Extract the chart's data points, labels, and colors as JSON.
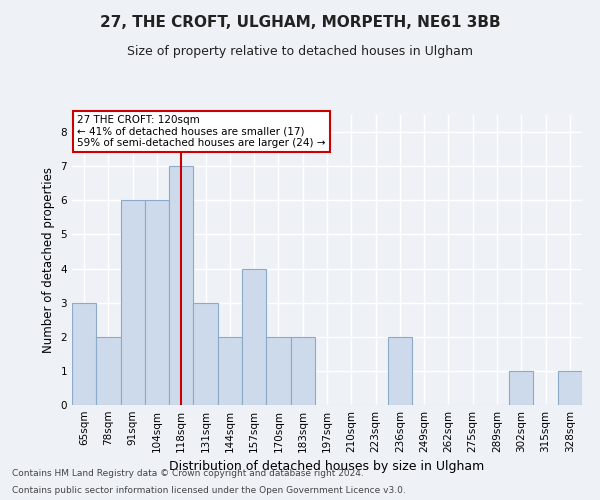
{
  "title1": "27, THE CROFT, ULGHAM, MORPETH, NE61 3BB",
  "title2": "Size of property relative to detached houses in Ulgham",
  "xlabel": "Distribution of detached houses by size in Ulgham",
  "ylabel": "Number of detached properties",
  "categories": [
    "65sqm",
    "78sqm",
    "91sqm",
    "104sqm",
    "118sqm",
    "131sqm",
    "144sqm",
    "157sqm",
    "170sqm",
    "183sqm",
    "197sqm",
    "210sqm",
    "223sqm",
    "236sqm",
    "249sqm",
    "262sqm",
    "275sqm",
    "289sqm",
    "302sqm",
    "315sqm",
    "328sqm"
  ],
  "values": [
    3,
    2,
    6,
    6,
    7,
    3,
    2,
    4,
    2,
    2,
    0,
    0,
    0,
    2,
    0,
    0,
    0,
    0,
    1,
    0,
    1
  ],
  "bar_color": "#cddaeb",
  "bar_edge_color": "#8aaac8",
  "highlight_index": 4,
  "highlight_line_color": "#cc0000",
  "annotation_text": "27 THE CROFT: 120sqm\n← 41% of detached houses are smaller (17)\n59% of semi-detached houses are larger (24) →",
  "annotation_box_color": "#ffffff",
  "annotation_box_edge": "#cc0000",
  "ylim": [
    0,
    8.5
  ],
  "yticks": [
    0,
    1,
    2,
    3,
    4,
    5,
    6,
    7,
    8
  ],
  "footer1": "Contains HM Land Registry data © Crown copyright and database right 2024.",
  "footer2": "Contains public sector information licensed under the Open Government Licence v3.0.",
  "bg_color": "#eef2f7",
  "grid_color": "#ffffff",
  "title1_fontsize": 11,
  "title2_fontsize": 9,
  "ylabel_fontsize": 8.5,
  "xlabel_fontsize": 9,
  "tick_fontsize": 7.5,
  "footer_fontsize": 6.5
}
